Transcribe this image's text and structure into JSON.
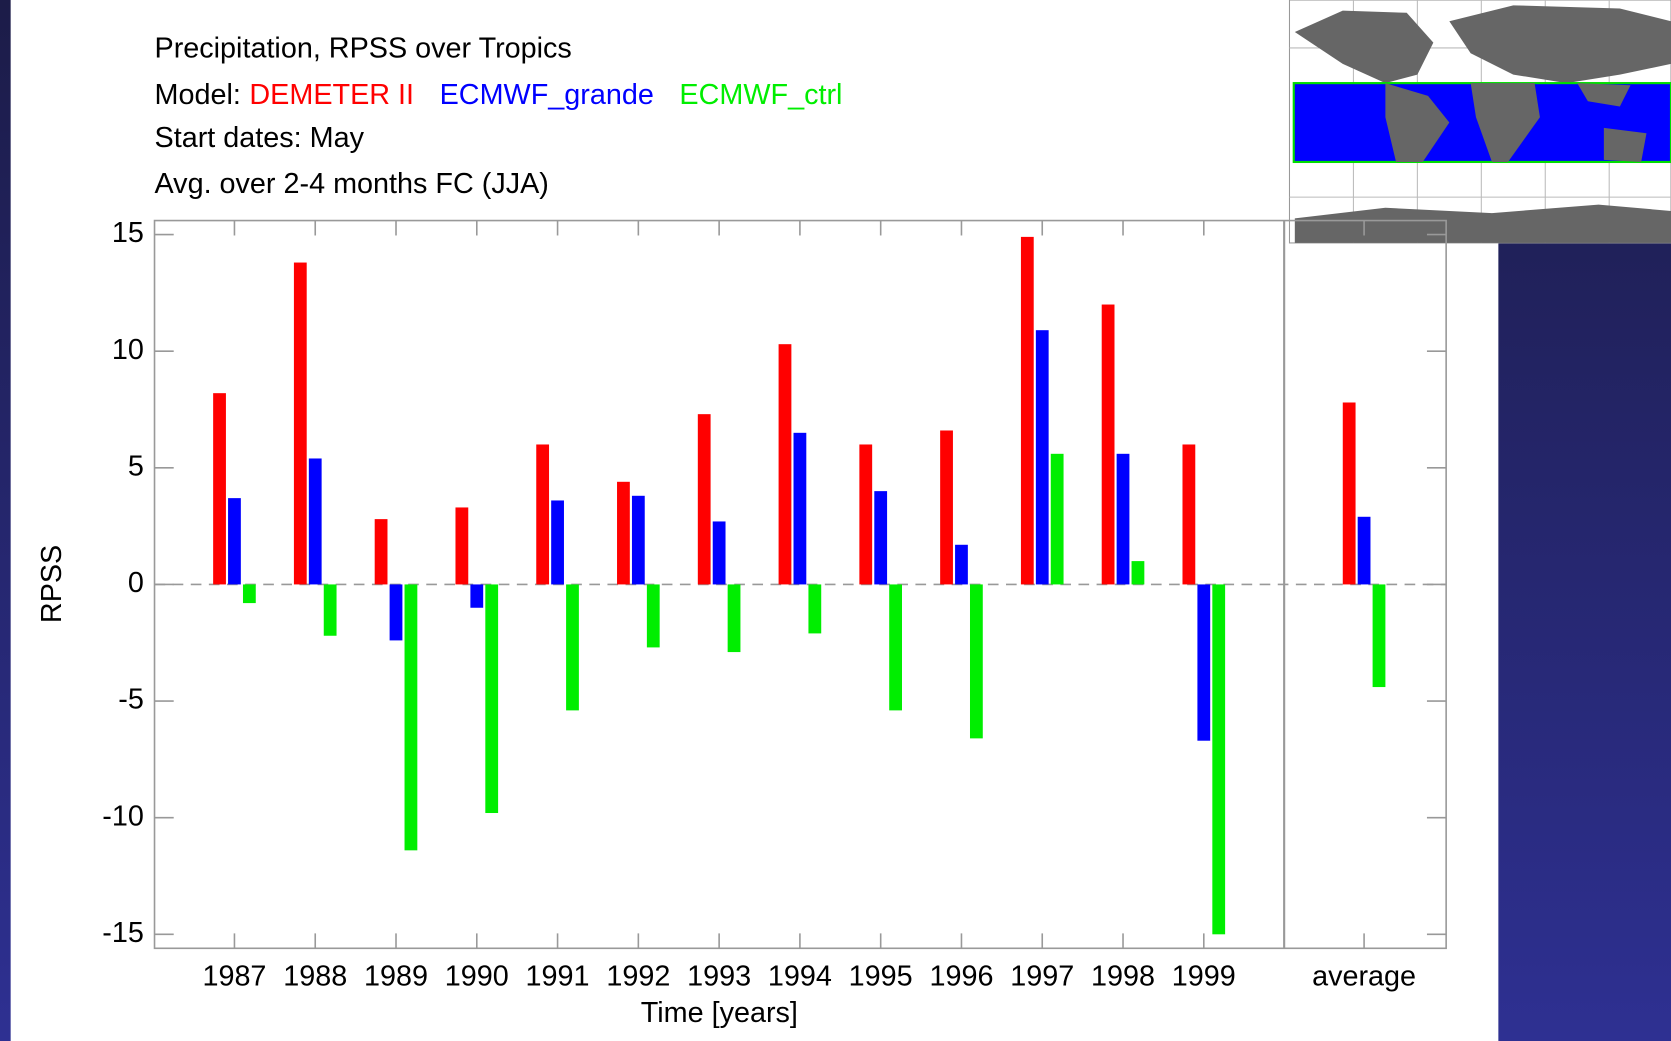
{
  "chart_data": {
    "type": "bar",
    "title_lines": [
      "Precipitation, RPSS over Tropics",
      "Start dates: May",
      "Avg. over 2-4 months FC (JJA)"
    ],
    "legend_label": "Model:",
    "x_label": "Time [years]",
    "y_label": "RPSS",
    "categories": [
      "1987",
      "1988",
      "1989",
      "1990",
      "1991",
      "1992",
      "1993",
      "1994",
      "1995",
      "1996",
      "1997",
      "1998",
      "1999",
      "average"
    ],
    "series": [
      {
        "name": "DEMETER II",
        "color": "#ff0000",
        "values": [
          8.2,
          13.8,
          2.8,
          3.3,
          6.0,
          4.4,
          7.3,
          10.3,
          6.0,
          6.6,
          14.9,
          12.0,
          6.0,
          7.8
        ]
      },
      {
        "name": "ECMWF_grande",
        "color": "#0000ff",
        "values": [
          3.7,
          5.4,
          -2.4,
          -1.0,
          3.6,
          3.8,
          2.7,
          6.5,
          4.0,
          1.7,
          10.9,
          5.6,
          -6.7,
          2.9
        ]
      },
      {
        "name": "ECMWF_ctrl",
        "color": "#00ee00",
        "values": [
          -0.8,
          -2.2,
          -11.4,
          -9.8,
          -5.4,
          -2.7,
          -2.9,
          -2.1,
          -5.4,
          -6.6,
          5.6,
          1.0,
          -15.0,
          -4.4
        ]
      }
    ],
    "ylim": [
      -15.6,
      15.6
    ],
    "yticks": [
      -15,
      -10,
      -5,
      0,
      5,
      10,
      15
    ],
    "zero_line": true
  }
}
